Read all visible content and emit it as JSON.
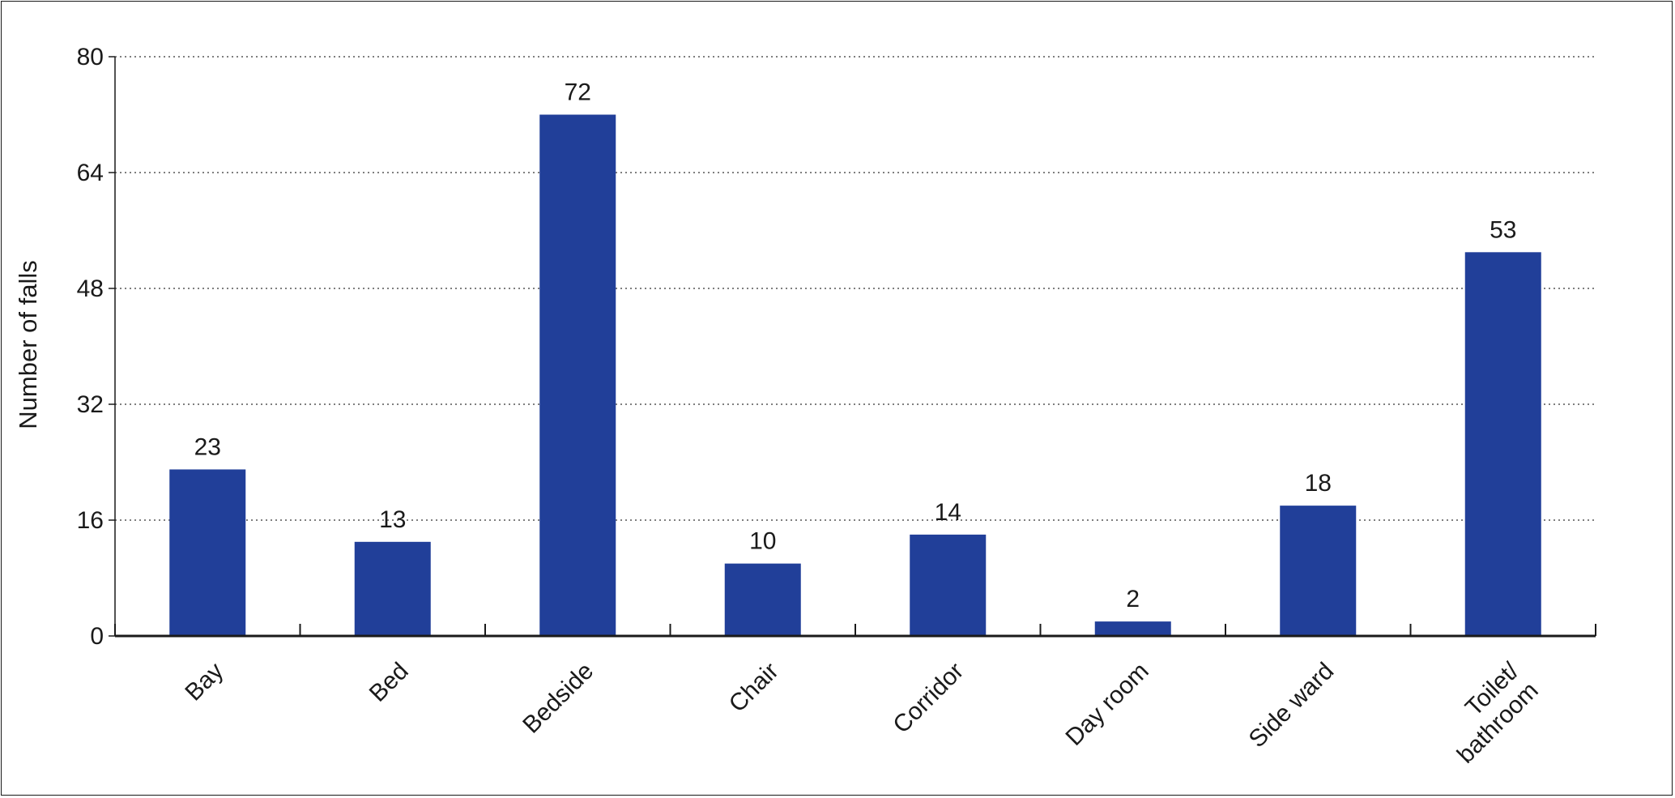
{
  "chart_data": {
    "type": "bar",
    "title": "",
    "xlabel": "",
    "ylabel": "Number of falls",
    "categories": [
      "Bay",
      "Bed",
      "Bedside",
      "Chair",
      "Corridor",
      "Day room",
      "Side ward",
      "Toilet/ bathroom"
    ],
    "category_lines": [
      [
        "Bay"
      ],
      [
        "Bed"
      ],
      [
        "Bedside"
      ],
      [
        "Chair"
      ],
      [
        "Corridor"
      ],
      [
        "Day room"
      ],
      [
        "Side ward"
      ],
      [
        "Toilet/",
        "bathroom"
      ]
    ],
    "values": [
      23,
      13,
      72,
      10,
      14,
      2,
      18,
      53
    ],
    "value_labels": [
      "23",
      "13",
      "72",
      "10",
      "14",
      "2",
      "18",
      "53"
    ],
    "ylim": [
      0,
      80
    ],
    "yticks": [
      0,
      16,
      32,
      48,
      64,
      80
    ],
    "ytick_labels": [
      "0",
      "16",
      "32",
      "48",
      "64",
      "80"
    ],
    "grid": "horizontal dotted",
    "bar_color": "#213f99",
    "axis_color": "#1a1a1a",
    "grid_color": "#555555",
    "x_label_rotation_deg": -45
  }
}
